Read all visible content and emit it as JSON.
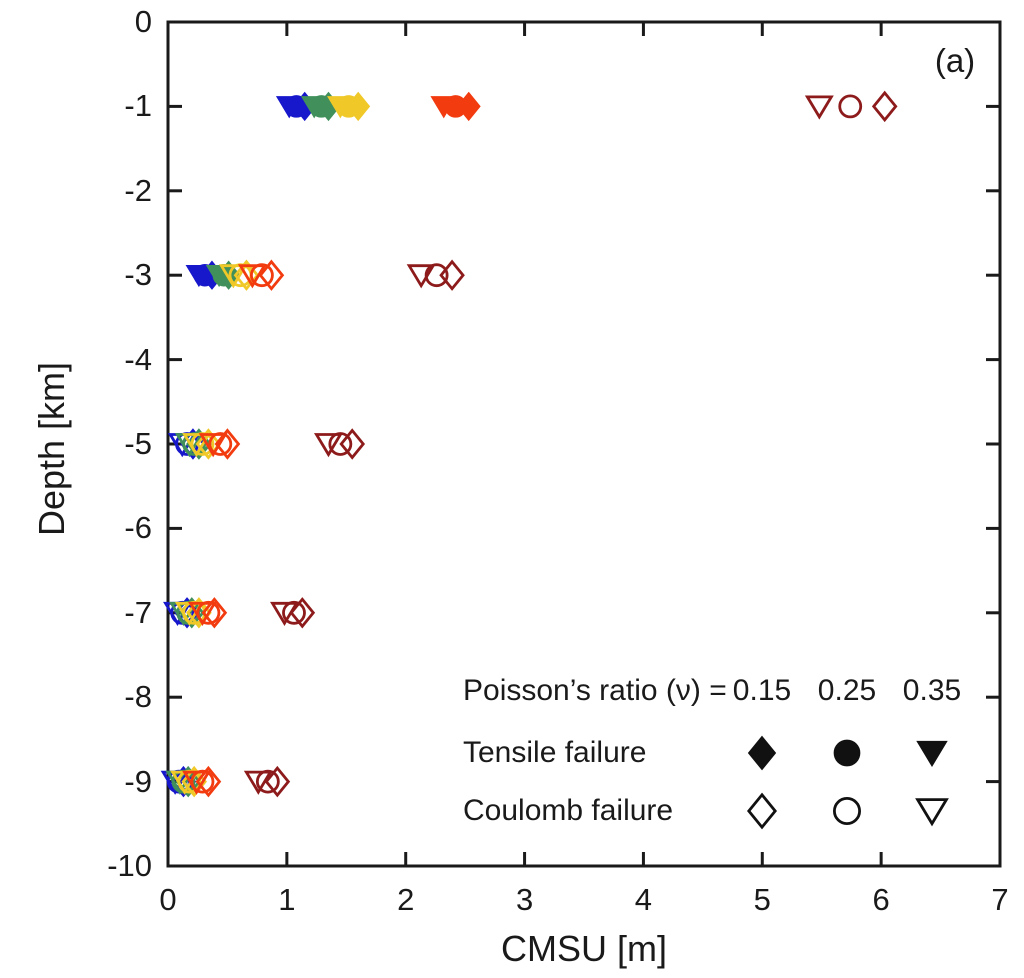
{
  "panel_label": "(a)",
  "axes": {
    "xlabel": "CMSU [m]",
    "ylabel": "Depth [km]",
    "xlim": [
      0,
      7
    ],
    "ylim": [
      -10,
      0
    ],
    "xticks": [
      0,
      1,
      2,
      3,
      4,
      5,
      6,
      7
    ],
    "yticks": [
      0,
      -1,
      -2,
      -3,
      -4,
      -5,
      -6,
      -7,
      -8,
      -9,
      -10
    ]
  },
  "colors": {
    "axis": "#1a1a1a",
    "legend_marker": "#111111",
    "blue": "#1717cc",
    "green": "#41905b",
    "yellow": "#f0c929",
    "orange": "#f23b0f",
    "darkred": "#8e1b1b"
  },
  "legend": {
    "header": "Poisson’s ratio (ν) =",
    "nu_values": [
      "0.15",
      "0.25",
      "0.35"
    ],
    "nu_shapes": [
      "diamond",
      "circle",
      "triangle-down"
    ],
    "rows": [
      {
        "label": "Tensile failure",
        "style": "filled"
      },
      {
        "label": "Coulomb failure",
        "style": "open"
      }
    ]
  },
  "chart_data": {
    "type": "scatter",
    "title": "",
    "xlabel": "CMSU [m]",
    "ylabel": "Depth [km]",
    "xlim": [
      0,
      7
    ],
    "ylim": [
      -10,
      0
    ],
    "grid": false,
    "nu_marker_map": {
      "0.15": "diamond",
      "0.25": "circle",
      "0.35": "triangle-down"
    },
    "marker_fill_rule": "filled = tensile failure, open = Coulomb failure",
    "series": [
      {
        "name": "blue",
        "color_key": "blue",
        "rows": [
          {
            "depth": -1,
            "failure": "tensile",
            "cmsu_by_nu": {
              "0.15": 1.15,
              "0.25": 1.08,
              "0.35": 1.02
            }
          },
          {
            "depth": -3,
            "failure": "tensile",
            "cmsu_by_nu": {
              "0.15": 0.37,
              "0.25": 0.31,
              "0.35": 0.26
            }
          },
          {
            "depth": -5,
            "failure": "coulomb",
            "cmsu_by_nu": {
              "0.15": 0.21,
              "0.25": 0.16,
              "0.35": 0.12
            }
          },
          {
            "depth": -7,
            "failure": "coulomb",
            "cmsu_by_nu": {
              "0.15": 0.16,
              "0.25": 0.12,
              "0.35": 0.08
            }
          },
          {
            "depth": -9,
            "failure": "coulomb",
            "cmsu_by_nu": {
              "0.15": 0.13,
              "0.25": 0.09,
              "0.35": 0.06
            }
          }
        ]
      },
      {
        "name": "green",
        "color_key": "green",
        "rows": [
          {
            "depth": -1,
            "failure": "tensile",
            "cmsu_by_nu": {
              "0.15": 1.35,
              "0.25": 1.29,
              "0.35": 1.23
            }
          },
          {
            "depth": -3,
            "failure": "tensile",
            "cmsu_by_nu": {
              "0.15": 0.51,
              "0.25": 0.47,
              "0.35": 0.43
            }
          },
          {
            "depth": -5,
            "failure": "coulomb",
            "cmsu_by_nu": {
              "0.15": 0.26,
              "0.25": 0.22,
              "0.35": 0.18
            }
          },
          {
            "depth": -7,
            "failure": "coulomb",
            "cmsu_by_nu": {
              "0.15": 0.2,
              "0.25": 0.17,
              "0.35": 0.13
            }
          },
          {
            "depth": -9,
            "failure": "coulomb",
            "cmsu_by_nu": {
              "0.15": 0.17,
              "0.25": 0.13,
              "0.35": 0.1
            }
          }
        ]
      },
      {
        "name": "yellow",
        "color_key": "yellow",
        "rows": [
          {
            "depth": -1,
            "failure": "tensile",
            "cmsu_by_nu": {
              "0.15": 1.6,
              "0.25": 1.52,
              "0.35": 1.45
            }
          },
          {
            "depth": -3,
            "failure": "coulomb",
            "cmsu_by_nu": {
              "0.15": 0.66,
              "0.25": 0.61,
              "0.35": 0.55
            }
          },
          {
            "depth": -5,
            "failure": "coulomb",
            "cmsu_by_nu": {
              "0.15": 0.34,
              "0.25": 0.29,
              "0.35": 0.24
            }
          },
          {
            "depth": -7,
            "failure": "coulomb",
            "cmsu_by_nu": {
              "0.15": 0.26,
              "0.25": 0.22,
              "0.35": 0.18
            }
          },
          {
            "depth": -9,
            "failure": "coulomb",
            "cmsu_by_nu": {
              "0.15": 0.22,
              "0.25": 0.18,
              "0.35": 0.14
            }
          }
        ]
      },
      {
        "name": "orange",
        "color_key": "orange",
        "rows": [
          {
            "depth": -1,
            "failure": "tensile",
            "cmsu_by_nu": {
              "0.15": 2.53,
              "0.25": 2.42,
              "0.35": 2.32
            }
          },
          {
            "depth": -3,
            "failure": "coulomb",
            "cmsu_by_nu": {
              "0.15": 0.87,
              "0.25": 0.79,
              "0.35": 0.71
            }
          },
          {
            "depth": -5,
            "failure": "coulomb",
            "cmsu_by_nu": {
              "0.15": 0.5,
              "0.25": 0.44,
              "0.35": 0.38
            }
          },
          {
            "depth": -7,
            "failure": "coulomb",
            "cmsu_by_nu": {
              "0.15": 0.39,
              "0.25": 0.34,
              "0.35": 0.29
            }
          },
          {
            "depth": -9,
            "failure": "coulomb",
            "cmsu_by_nu": {
              "0.15": 0.34,
              "0.25": 0.29,
              "0.35": 0.24
            }
          }
        ]
      },
      {
        "name": "darkred",
        "color_key": "darkred",
        "rows": [
          {
            "depth": -1,
            "failure": "coulomb",
            "cmsu_by_nu": {
              "0.15": 6.03,
              "0.25": 5.74,
              "0.35": 5.48
            }
          },
          {
            "depth": -3,
            "failure": "coulomb",
            "cmsu_by_nu": {
              "0.15": 2.39,
              "0.25": 2.26,
              "0.35": 2.13
            }
          },
          {
            "depth": -5,
            "failure": "coulomb",
            "cmsu_by_nu": {
              "0.15": 1.55,
              "0.25": 1.45,
              "0.35": 1.35
            }
          },
          {
            "depth": -7,
            "failure": "coulomb",
            "cmsu_by_nu": {
              "0.15": 1.13,
              "0.25": 1.06,
              "0.35": 0.98
            }
          },
          {
            "depth": -9,
            "failure": "coulomb",
            "cmsu_by_nu": {
              "0.15": 0.92,
              "0.25": 0.84,
              "0.35": 0.76
            }
          }
        ]
      }
    ]
  }
}
